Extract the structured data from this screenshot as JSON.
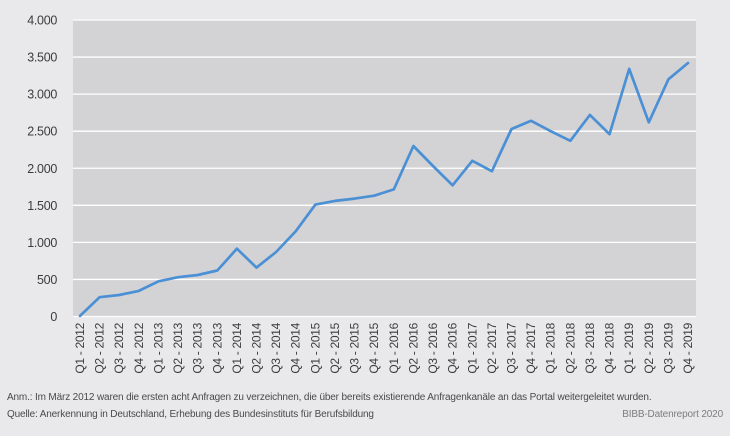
{
  "page": {
    "background": "#e9e9eb"
  },
  "chart_data": {
    "type": "line",
    "title": "",
    "categories": [
      "Q1 - 2012",
      "Q2 - 2012",
      "Q3 - 2012",
      "Q4 - 2012",
      "Q1 - 2013",
      "Q2 - 2013",
      "Q3 - 2013",
      "Q4 - 2013",
      "Q1 - 2014",
      "Q2 - 2014",
      "Q3 - 2014",
      "Q4 - 2014",
      "Q1 - 2015",
      "Q2 - 2015",
      "Q3 - 2015",
      "Q4 - 2015",
      "Q1 - 2016",
      "Q2 - 2016",
      "Q3 - 2016",
      "Q4 - 2016",
      "Q1 - 2017",
      "Q2 - 2017",
      "Q3 - 2017",
      "Q4 - 2017",
      "Q1 - 2018",
      "Q2 - 2018",
      "Q3 - 2018",
      "Q4 - 2018",
      "Q1 - 2019",
      "Q2 - 2019",
      "Q3 - 2019",
      "Q4 - 2019"
    ],
    "values": [
      8,
      260,
      290,
      345,
      475,
      530,
      560,
      620,
      915,
      660,
      870,
      1150,
      1510,
      1560,
      1590,
      1630,
      1715,
      2300,
      2030,
      1770,
      2100,
      1960,
      2530,
      2640,
      2500,
      2370,
      2720,
      2460,
      3340,
      2620,
      3200,
      3420
    ],
    "xlabel": "",
    "ylabel": "",
    "ylim": [
      0,
      4000
    ],
    "ytick_step": 500,
    "ytick_labels": [
      "0",
      "500",
      "1.000",
      "1.500",
      "2.000",
      "2.500",
      "3.000",
      "3.500",
      "4.000"
    ],
    "grid": "horizontal",
    "legend": "none",
    "colors": {
      "line": "#4b90d5",
      "plot_background": "#d3d3d5",
      "gridline": "#ffffff",
      "axis_text": "#3c3c3e"
    }
  },
  "footnotes": {
    "note": "Anm.: Im März 2012 waren die ersten acht Anfragen zu verzeichnen, die über bereits existierende Anfragenkanäle an das Portal weitergeleitet wurden.",
    "source": "Quelle: Anerkennung in Deutschland, Erhebung des Bundesinstituts für Berufsbildung",
    "report": "BIBB-Datenreport 2020"
  }
}
